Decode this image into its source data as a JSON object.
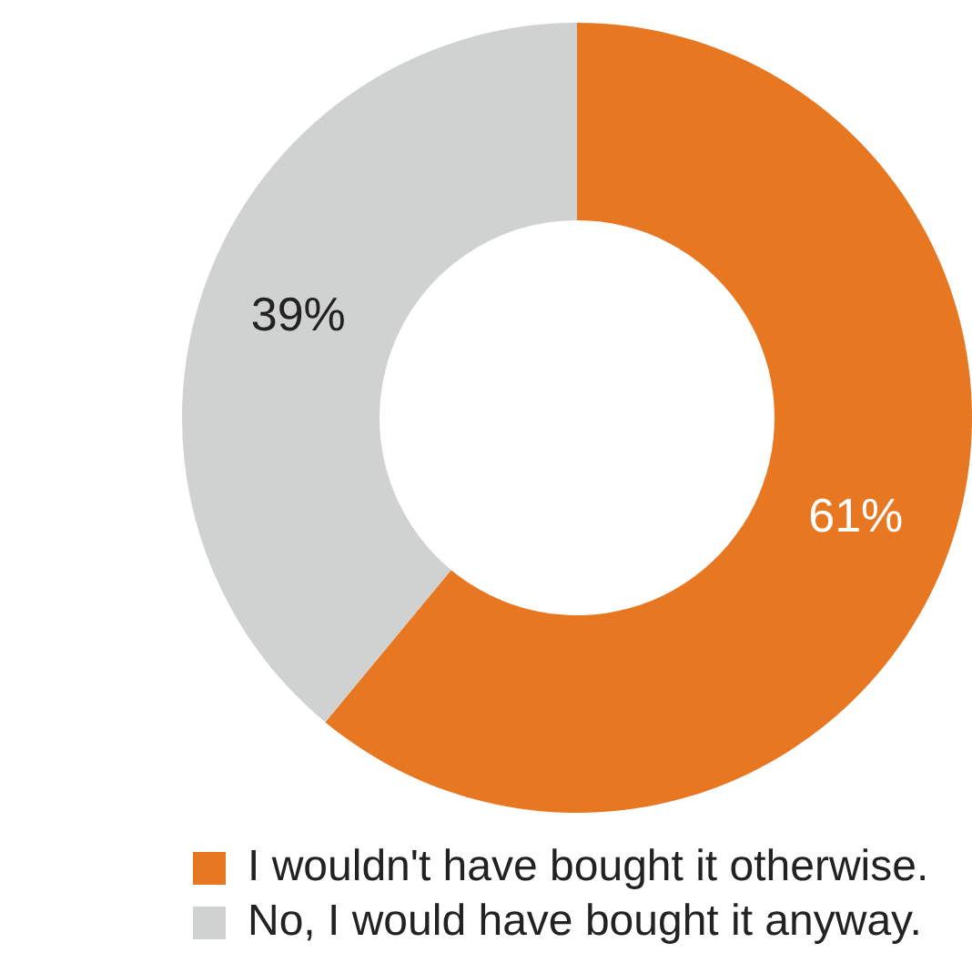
{
  "chart_data": {
    "type": "donut",
    "categories": [
      "I wouldn't have bought it otherwise.",
      "No, I would have bought it anyway."
    ],
    "values": [
      61,
      39
    ],
    "colors": [
      "#e87722",
      "#d0d1d1"
    ],
    "value_labels": [
      "61%",
      "39%"
    ],
    "legend": "bottom"
  }
}
